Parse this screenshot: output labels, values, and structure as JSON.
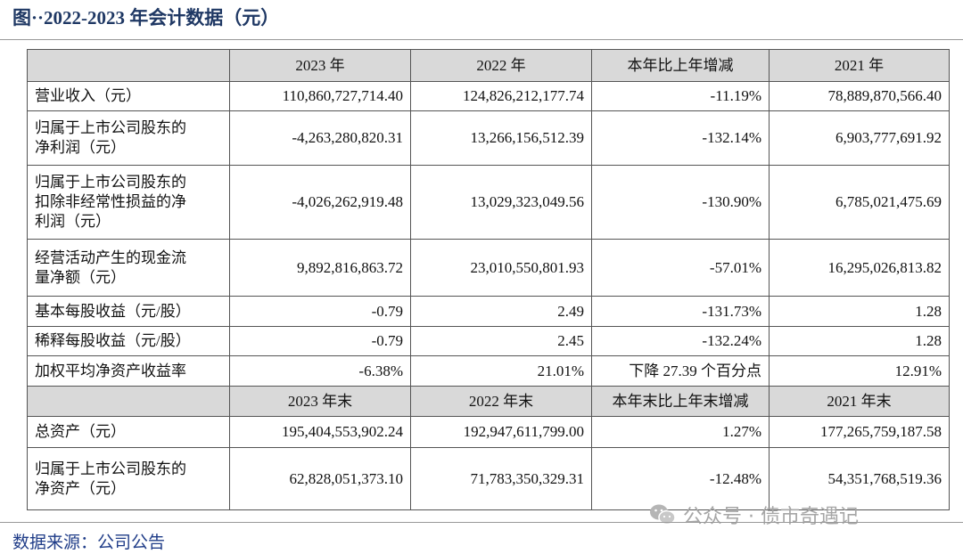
{
  "title": "图··2022-2023 年会计数据（元）",
  "sections": [
    {
      "header": [
        "2023 年",
        "2022 年",
        "本年比上年增减",
        "2021 年"
      ],
      "rows": [
        {
          "label": [
            "营业收入（元）"
          ],
          "cells": [
            "110,860,727,714.40",
            "124,826,212,177.74",
            "-11.19%",
            "78,889,870,566.40"
          ]
        },
        {
          "label": [
            "归属于上市公司股东的",
            "净利润（元）"
          ],
          "cells": [
            "-4,263,280,820.31",
            "13,266,156,512.39",
            "-132.14%",
            "6,903,777,691.92"
          ]
        },
        {
          "label": [
            "归属于上市公司股东的",
            "扣除非经常性损益的净",
            "利润（元）"
          ],
          "cells": [
            "-4,026,262,919.48",
            "13,029,323,049.56",
            "-130.90%",
            "6,785,021,475.69"
          ]
        },
        {
          "label": [
            "经营活动产生的现金流",
            "量净额（元）"
          ],
          "cells": [
            "9,892,816,863.72",
            "23,010,550,801.93",
            "-57.01%",
            "16,295,026,813.82"
          ]
        },
        {
          "label": [
            "基本每股收益（元/股）"
          ],
          "cells": [
            "-0.79",
            "2.49",
            "-131.73%",
            "1.28"
          ]
        },
        {
          "label": [
            "稀释每股收益（元/股）"
          ],
          "cells": [
            "-0.79",
            "2.45",
            "-132.24%",
            "1.28"
          ]
        },
        {
          "label": [
            "加权平均净资产收益率"
          ],
          "cells": [
            "-6.38%",
            "21.01%",
            "下降 27.39 个百分点",
            "12.91%"
          ]
        }
      ]
    },
    {
      "header": [
        "2023 年末",
        "2022 年末",
        "本年末比上年末增减",
        "2021 年末"
      ],
      "rows": [
        {
          "label": [
            "总资产（元）"
          ],
          "cells": [
            "195,404,553,902.24",
            "192,947,611,799.00",
            "1.27%",
            "177,265,759,187.58"
          ]
        },
        {
          "label": [
            "归属于上市公司股东的",
            "净资产（元）"
          ],
          "cells": [
            "62,828,051,373.10",
            "71,783,350,329.31",
            "-12.48%",
            "54,351,768,519.36"
          ]
        }
      ]
    }
  ],
  "watermark": "公众号 · 债市奇遇记",
  "source": "数据来源：公司公告"
}
